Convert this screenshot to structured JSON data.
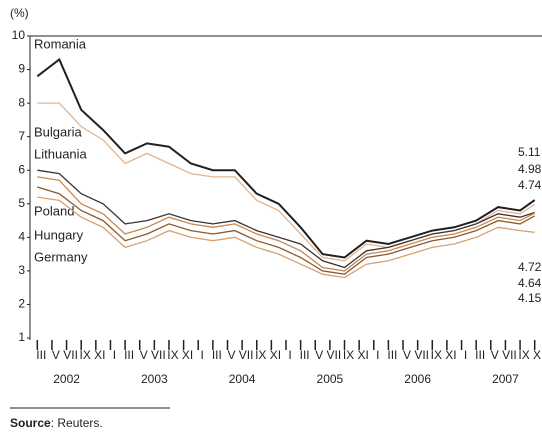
{
  "chart_data": {
    "type": "line",
    "y_unit_label": "(%)",
    "x": [
      "2002-03",
      "2002-06",
      "2002-09",
      "2002-12",
      "2003-03",
      "2003-06",
      "2003-09",
      "2003-12",
      "2004-03",
      "2004-06",
      "2004-09",
      "2004-12",
      "2005-03",
      "2005-06",
      "2005-09",
      "2005-12",
      "2006-03",
      "2006-06",
      "2006-09",
      "2006-12",
      "2007-03",
      "2007-06",
      "2007-09",
      "2007-11"
    ],
    "series": [
      {
        "name": "Romania",
        "color": "#231f20",
        "values": [
          8.8,
          9.3,
          7.8,
          7.2,
          6.5,
          6.8,
          6.7,
          6.2,
          6.0,
          6.0,
          5.3,
          5.0,
          4.3,
          3.5,
          3.4,
          3.9,
          3.8,
          4.0,
          4.2,
          4.3,
          4.5,
          4.9,
          4.8,
          5.11
        ]
      },
      {
        "name": "Bulgaria",
        "color": "#e2b590",
        "values": [
          8.0,
          8.0,
          7.3,
          6.9,
          6.2,
          6.5,
          6.2,
          5.9,
          5.8,
          5.8,
          5.1,
          4.8,
          4.1,
          3.4,
          3.3,
          3.8,
          3.7,
          3.9,
          4.1,
          4.2,
          4.4,
          4.8,
          4.7,
          4.98
        ]
      },
      {
        "name": "Lithuania",
        "color": "#3a3335",
        "values": [
          6.0,
          5.9,
          5.3,
          5.0,
          4.4,
          4.5,
          4.7,
          4.5,
          4.4,
          4.5,
          4.2,
          4.0,
          3.8,
          3.3,
          3.1,
          3.6,
          3.7,
          3.9,
          4.1,
          4.2,
          4.4,
          4.7,
          4.6,
          4.74
        ]
      },
      {
        "name": "Poland",
        "color": "#c8874f",
        "values": [
          5.8,
          5.7,
          5.0,
          4.7,
          4.1,
          4.3,
          4.6,
          4.4,
          4.3,
          4.4,
          4.1,
          3.9,
          3.6,
          3.1,
          3.0,
          3.5,
          3.6,
          3.8,
          4.0,
          4.1,
          4.3,
          4.6,
          4.5,
          4.72
        ]
      },
      {
        "name": "Hungary",
        "color": "#8a5a2e",
        "values": [
          5.5,
          5.3,
          4.8,
          4.5,
          3.9,
          4.1,
          4.4,
          4.2,
          4.1,
          4.2,
          3.9,
          3.7,
          3.4,
          3.0,
          2.9,
          3.4,
          3.5,
          3.7,
          3.9,
          4.0,
          4.2,
          4.5,
          4.4,
          4.64
        ]
      },
      {
        "name": "Germany",
        "color": "#d9a070",
        "values": [
          5.2,
          5.1,
          4.6,
          4.3,
          3.7,
          3.9,
          4.2,
          4.0,
          3.9,
          4.0,
          3.7,
          3.5,
          3.2,
          2.9,
          2.8,
          3.2,
          3.3,
          3.5,
          3.7,
          3.8,
          4.0,
          4.3,
          4.2,
          4.15
        ]
      }
    ],
    "xlim": [
      "2002-02",
      "2007-12"
    ],
    "xticks": [
      {
        "value": "2002-03",
        "label": "III"
      },
      {
        "value": "2002-05",
        "label": "V"
      },
      {
        "value": "2002-07",
        "label": "VII"
      },
      {
        "value": "2002-09",
        "label": "IX"
      },
      {
        "value": "2002-11",
        "label": "XI"
      },
      {
        "value": "2003-01",
        "label": "I"
      },
      {
        "value": "2003-03",
        "label": "III"
      },
      {
        "value": "2003-05",
        "label": "V"
      },
      {
        "value": "2003-07",
        "label": "VII"
      },
      {
        "value": "2003-09",
        "label": "IX"
      },
      {
        "value": "2003-11",
        "label": "XI"
      },
      {
        "value": "2004-01",
        "label": "I"
      },
      {
        "value": "2004-03",
        "label": "III"
      },
      {
        "value": "2004-05",
        "label": "V"
      },
      {
        "value": "2004-07",
        "label": "VII"
      },
      {
        "value": "2004-09",
        "label": "IX"
      },
      {
        "value": "2004-11",
        "label": "XI"
      },
      {
        "value": "2005-01",
        "label": "I"
      },
      {
        "value": "2005-03",
        "label": "III"
      },
      {
        "value": "2005-05",
        "label": "V"
      },
      {
        "value": "2005-07",
        "label": "VII"
      },
      {
        "value": "2005-09",
        "label": "IX"
      },
      {
        "value": "2005-11",
        "label": "XI"
      },
      {
        "value": "2006-01",
        "label": "I"
      },
      {
        "value": "2006-03",
        "label": "III"
      },
      {
        "value": "2006-05",
        "label": "V"
      },
      {
        "value": "2006-07",
        "label": "VII"
      },
      {
        "value": "2006-09",
        "label": "IX"
      },
      {
        "value": "2006-11",
        "label": "XI"
      },
      {
        "value": "2007-01",
        "label": "I"
      },
      {
        "value": "2007-03",
        "label": "III"
      },
      {
        "value": "2007-05",
        "label": "V"
      },
      {
        "value": "2007-07",
        "label": "VII"
      },
      {
        "value": "2007-09",
        "label": "IX"
      },
      {
        "value": "2007-11",
        "label": "XI"
      }
    ],
    "years": [
      "2002",
      "2003",
      "2004",
      "2005",
      "2006",
      "2007"
    ],
    "ylim": [
      1,
      10
    ],
    "yticks": [
      1,
      2,
      3,
      4,
      5,
      6,
      7,
      8,
      9,
      10
    ],
    "source_label": "Source",
    "source_text": ": Reuters."
  }
}
